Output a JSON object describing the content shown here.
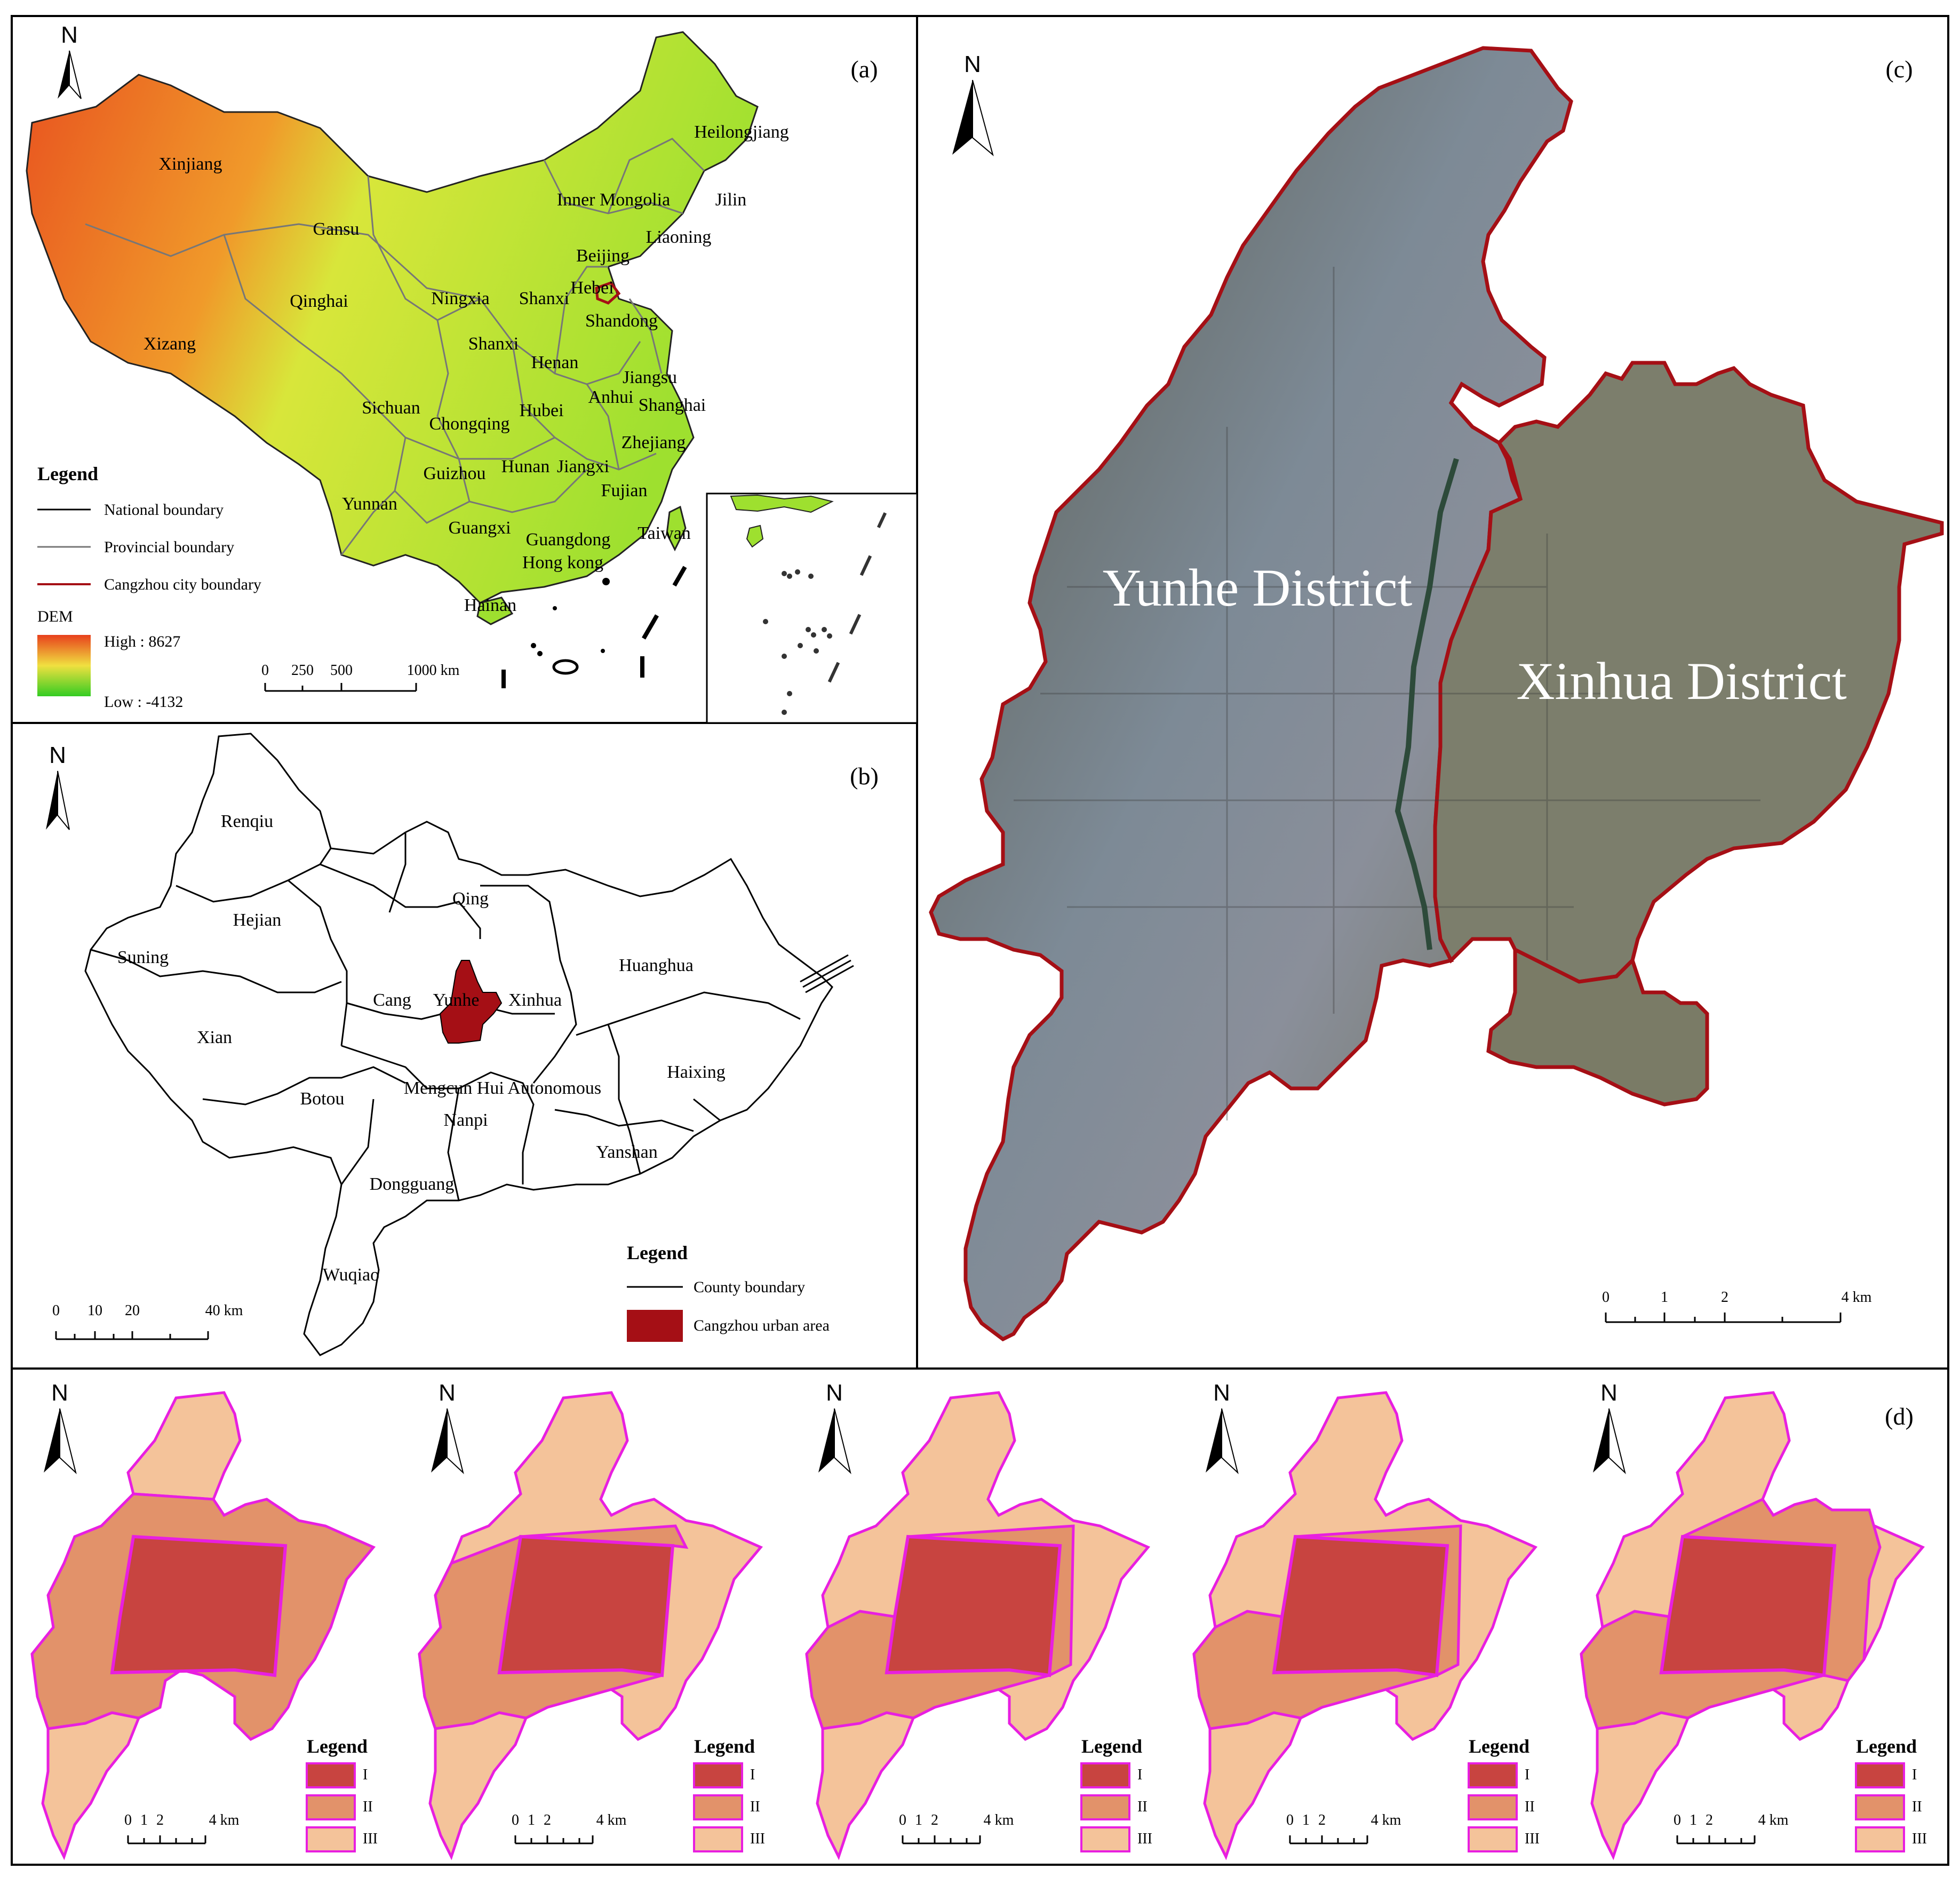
{
  "panels": {
    "a": {
      "label": "(a)",
      "north": "N",
      "provinces": [
        "Xinjiang",
        "Heilongjiang",
        "Inner Mongolia",
        "Jilin",
        "Liaoning",
        "Gansu",
        "Beijing",
        "Qinghai",
        "Ningxia",
        "Shanxi",
        "Hebei",
        "Shandong",
        "Xizang",
        "Shanxi",
        "Henan",
        "Jiangsu",
        "Anhui",
        "Shanghai",
        "Sichuan",
        "Chongqing",
        "Hubei",
        "Zhejiang",
        "Guizhou",
        "Hunan",
        "Jiangxi",
        "Fujian",
        "Yunnan",
        "Guangxi",
        "Guangdong",
        "Taiwan",
        "Hong kong",
        "Hainan"
      ],
      "legend_title": "Legend",
      "legend_items": [
        "National boundary",
        "Provincial boundary",
        "Cangzhou city boundary"
      ],
      "dem_title": "DEM",
      "dem_high": "High : 8627",
      "dem_low": "Low : -4132",
      "scale_ticks": [
        "0",
        "250",
        "500",
        "1000 km"
      ]
    },
    "b": {
      "label": "(b)",
      "north": "N",
      "counties": [
        "Renqiu",
        "Hejian",
        "Qing",
        "Suning",
        "Huanghua",
        "Cang",
        "Yunhe",
        "Xinhua",
        "Xian",
        "Haixing",
        "Botou",
        "Mengcun Hui Autonomous",
        "Nanpi",
        "Yanshan",
        "Dongguang",
        "Wuqiao"
      ],
      "legend_title": "Legend",
      "legend_items": [
        "County boundary",
        "Cangzhou urban area"
      ],
      "scale_ticks": [
        "0",
        "10",
        "20",
        "40 km"
      ]
    },
    "c": {
      "label": "(c)",
      "north": "N",
      "districts": [
        "Yunhe District",
        "Xinhua District"
      ],
      "scale_ticks": [
        "0",
        "1",
        "2",
        "4 km"
      ]
    },
    "d": {
      "label": "(d)",
      "north": "N",
      "legend_title": "Legend",
      "legend_items": [
        "I",
        "II",
        "III"
      ],
      "scale_ticks": [
        "0",
        "1",
        "2",
        "4 km"
      ]
    }
  },
  "colors": {
    "urban": "#a50f15",
    "zone_I": "#c84440",
    "zone_II": "#e2926a",
    "zone_III": "#f4c39a",
    "zone_border": "#e81fe0",
    "dem_high": "#e8401c",
    "dem_low": "#33cc22"
  }
}
